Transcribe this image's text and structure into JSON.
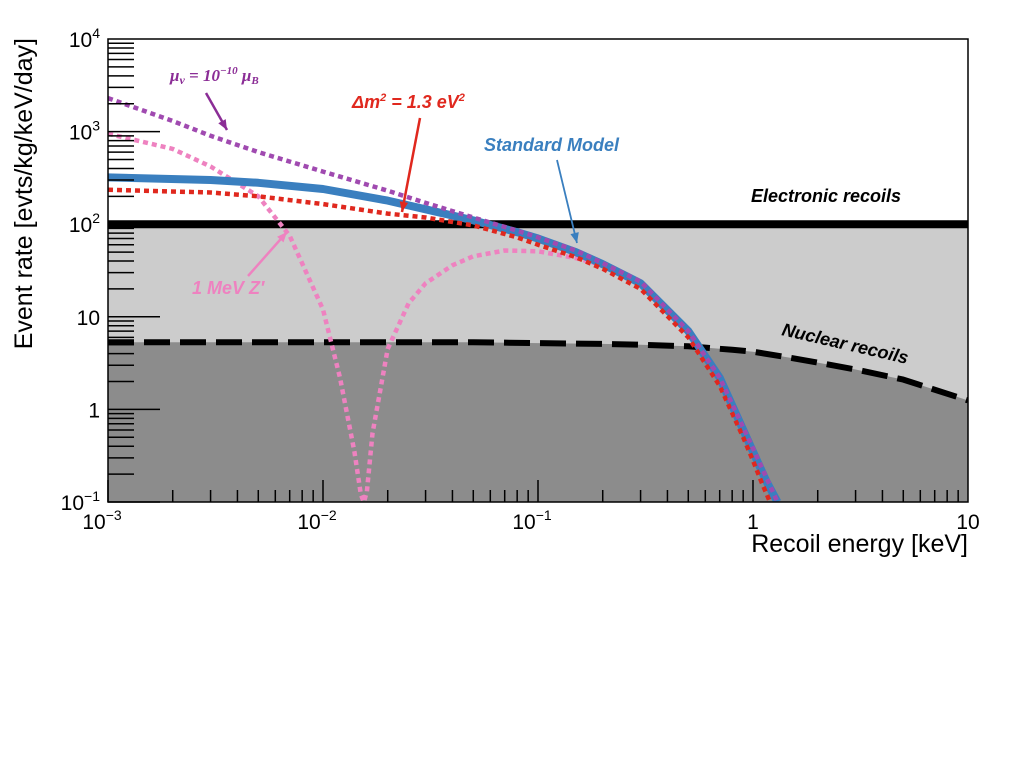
{
  "chart_data": {
    "type": "line",
    "xlabel": "Recoil energy [keV]",
    "ylabel": "Event rate [evts/kg/keV/day]",
    "x_scale": "log",
    "y_scale": "log",
    "xlim": [
      0.001,
      10
    ],
    "ylim": [
      0.1,
      10000
    ],
    "x_tick_labels": [
      {
        "value": 0.001,
        "base": "10",
        "exp": "−3"
      },
      {
        "value": 0.01,
        "base": "10",
        "exp": "−2"
      },
      {
        "value": 0.1,
        "base": "10",
        "exp": "−1"
      },
      {
        "value": 1,
        "base": "1",
        "exp": ""
      },
      {
        "value": 10,
        "base": "10",
        "exp": ""
      }
    ],
    "y_tick_labels": [
      {
        "value": 0.1,
        "base": "10",
        "exp": "−1"
      },
      {
        "value": 1,
        "base": "1",
        "exp": ""
      },
      {
        "value": 10,
        "base": "10",
        "exp": ""
      },
      {
        "value": 100,
        "base": "10",
        "exp": "2"
      },
      {
        "value": 1000,
        "base": "10",
        "exp": "3"
      },
      {
        "value": 10000,
        "base": "10",
        "exp": "4"
      }
    ],
    "grid": false,
    "regions": [
      {
        "label": "Electronic recoils",
        "y_level": 100,
        "color": "#cccccc"
      },
      {
        "label": "Nuclear recoils",
        "color": "#8c8c8c"
      }
    ],
    "series": [
      {
        "key": "nuclear",
        "color": "#000000",
        "style": "dashed",
        "x": [
          0.001,
          0.01,
          0.05,
          0.1,
          0.2,
          0.3,
          0.5,
          0.8,
          1.0,
          1.5,
          2,
          3,
          5,
          10
        ],
        "y": [
          5.3,
          5.3,
          5.3,
          5.2,
          5.1,
          5.0,
          4.8,
          4.4,
          4.2,
          3.6,
          3.2,
          2.7,
          2.1,
          1.25
        ]
      },
      {
        "key": "sm",
        "color": "#3a7fbf",
        "style": "solid",
        "x": [
          0.001,
          0.003,
          0.005,
          0.01,
          0.02,
          0.03,
          0.05,
          0.08,
          0.1,
          0.15,
          0.2,
          0.3,
          0.5,
          0.7,
          0.9,
          1.0,
          1.15,
          1.3
        ],
        "y": [
          320,
          300,
          280,
          240,
          180,
          145,
          110,
          82,
          70,
          50,
          37,
          23,
          7,
          2.2,
          0.6,
          0.35,
          0.17,
          0.1
        ]
      },
      {
        "key": "sterile",
        "color": "#e0281e",
        "style": "dotted",
        "x": [
          0.001,
          0.003,
          0.005,
          0.01,
          0.02,
          0.03,
          0.05,
          0.08,
          0.1,
          0.15,
          0.2,
          0.3,
          0.5,
          0.7,
          0.9,
          1.0,
          1.1,
          1.2
        ],
        "y": [
          235,
          220,
          200,
          165,
          130,
          118,
          97,
          72,
          60,
          44,
          33,
          20,
          6,
          1.8,
          0.5,
          0.28,
          0.16,
          0.1
        ]
      },
      {
        "key": "mag",
        "color": "#a04ab0",
        "style": "dotted",
        "x": [
          0.001,
          0.002,
          0.003,
          0.005,
          0.01,
          0.02,
          0.03,
          0.05,
          0.08,
          0.1,
          0.15,
          0.2,
          0.3,
          0.5,
          0.7,
          1.0,
          1.3
        ],
        "y": [
          2300,
          1300,
          900,
          600,
          370,
          230,
          170,
          118,
          85,
          72,
          52,
          38,
          24,
          7,
          2.2,
          0.38,
          0.1
        ]
      },
      {
        "key": "zprime",
        "color": "#ee82c0",
        "style": "dotted",
        "x": [
          0.001,
          0.002,
          0.003,
          0.005,
          0.007,
          0.01,
          0.012,
          0.014,
          0.015,
          0.0155,
          0.016,
          0.017,
          0.02,
          0.025,
          0.03,
          0.04,
          0.05,
          0.07,
          0.1,
          0.15,
          0.2
        ],
        "y": [
          950,
          650,
          420,
          200,
          75,
          12,
          2.2,
          0.35,
          0.12,
          0.1,
          0.13,
          0.55,
          4.5,
          14,
          23,
          36,
          45,
          52,
          51,
          43,
          36
        ]
      }
    ],
    "annotations": [
      {
        "key": "mag",
        "text_main": "μ",
        "text_sub": "ν",
        "text_eq": " = 10",
        "text_sup": "−10",
        "text_end": " μ",
        "text_end_sub": "B",
        "color": "#8b2d96"
      },
      {
        "key": "sterile",
        "text_main": "Δm",
        "text_sup": "2",
        "text_eq": " = 1.3 eV",
        "text_sup2": "2",
        "color": "#e0281e"
      },
      {
        "key": "sm",
        "text": "Standard Model",
        "color": "#3a7fbf"
      },
      {
        "key": "zprime",
        "text": "1 MeV Z′",
        "color": "#ee82c0"
      },
      {
        "key": "electronic",
        "text": "Electronic recoils",
        "color": "#000000"
      },
      {
        "key": "nuclear",
        "text": "Nuclear recoils",
        "color": "#000000"
      }
    ]
  }
}
